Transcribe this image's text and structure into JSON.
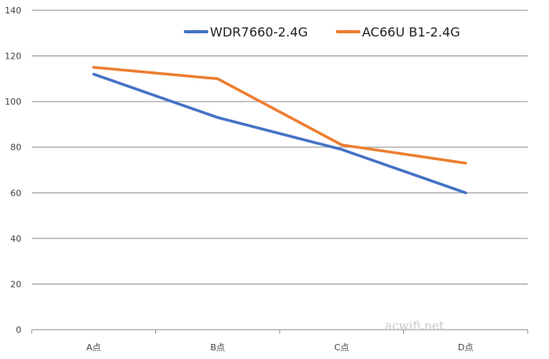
{
  "chart_data": {
    "type": "line",
    "categories": [
      "A点",
      "B点",
      "C点",
      "D点"
    ],
    "series": [
      {
        "name": "WDR7660-2.4G",
        "values": [
          112,
          93,
          79,
          60
        ],
        "color": "#4472C4"
      },
      {
        "name": "AC66U B1-2.4G",
        "values": [
          115,
          110,
          81,
          73
        ],
        "color": "#ED7D31"
      }
    ],
    "ylim": [
      0,
      140
    ],
    "yticks": [
      0,
      20,
      40,
      60,
      80,
      100,
      120,
      140
    ],
    "grid": true,
    "legend_position": "top-right",
    "watermark": "acwifi.net"
  }
}
